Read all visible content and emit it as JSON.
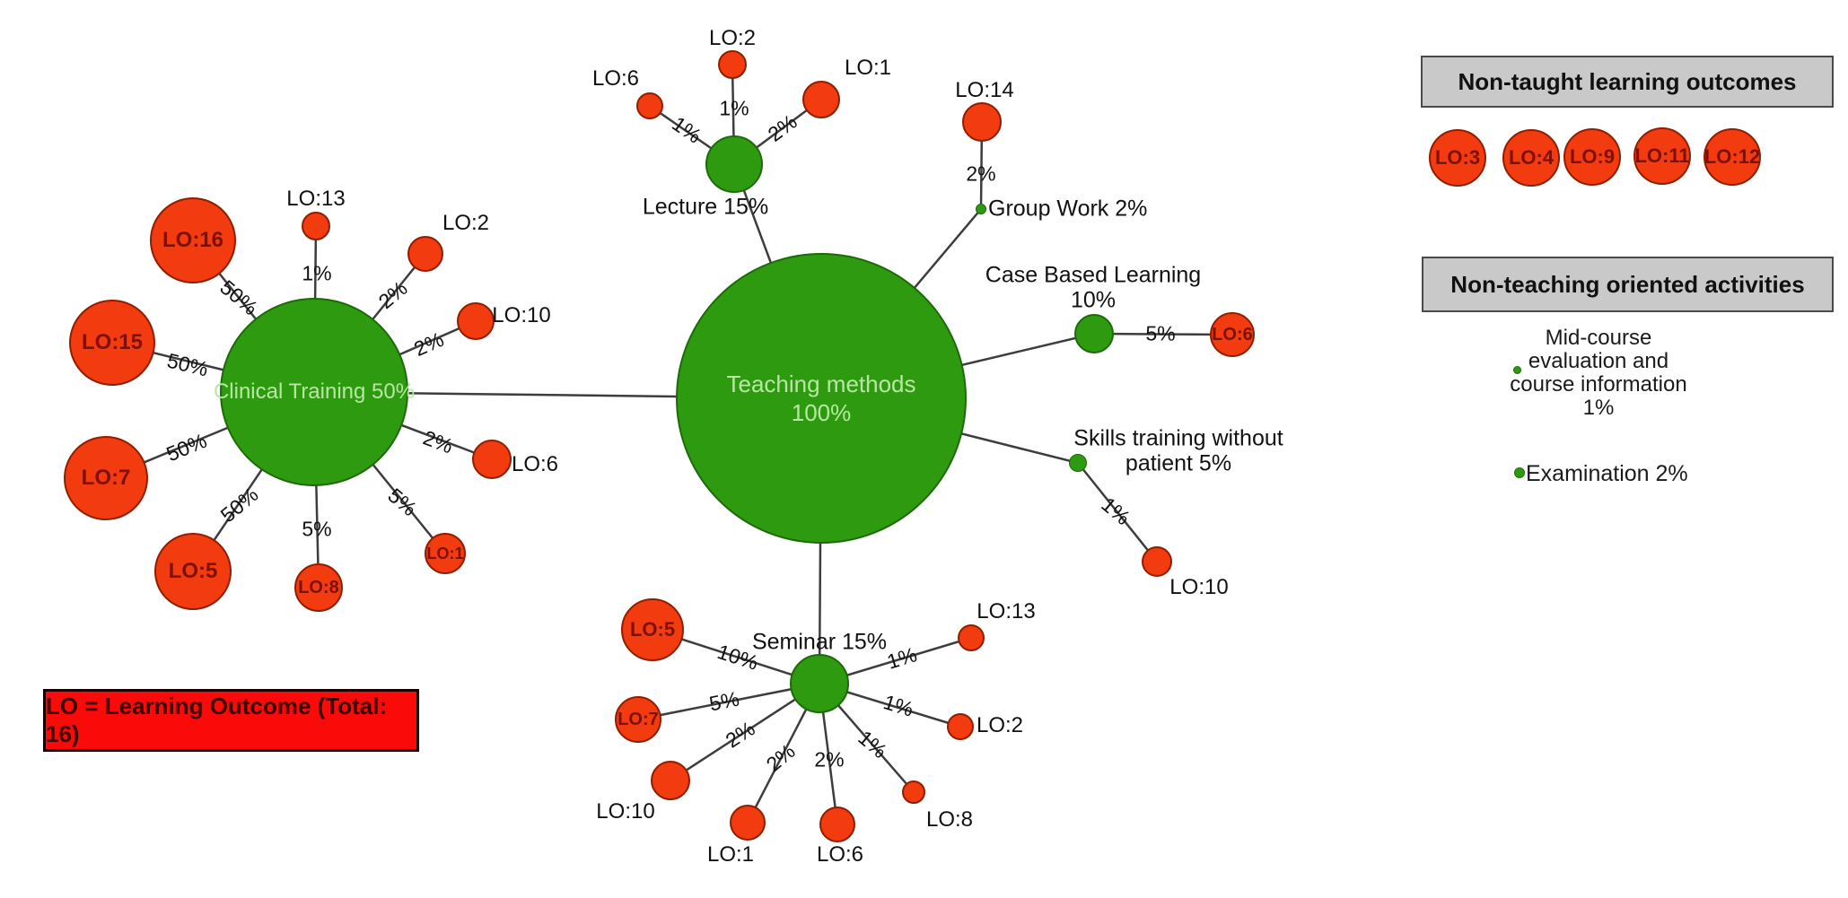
{
  "colors": {
    "hub_green": "#2e9a0f",
    "hub_border": "#1d6a08",
    "lo_red": "#f23b0e",
    "lo_border": "#8f1e00",
    "hub_text": "#b7e7a3",
    "lo_text": "#7d1000",
    "edge_line": "#3d3d3d",
    "legend_gray": "#c9c9c9",
    "note_red": "#fb0a0a"
  },
  "diagram": {
    "nodes": {
      "teaching": {
        "label": "Teaching methods",
        "label2": "100%",
        "kind": "hub"
      },
      "clinical": {
        "label": "Clinical Training 50%",
        "kind": "hub"
      },
      "lecture": {
        "label": "Lecture 15%",
        "kind": "hub"
      },
      "seminar": {
        "label": "Seminar 15%",
        "kind": "hub"
      },
      "casebased": {
        "label": "Case Based Learning",
        "label2": "10%",
        "kind": "hub"
      },
      "skills": {
        "label": "Skills training without",
        "label2": "patient 5%",
        "kind": "hub"
      },
      "groupwork": {
        "label": "Group Work 2%",
        "kind": "hub"
      },
      "lec_lo6": {
        "label": "LO:6",
        "kind": "lo"
      },
      "lec_lo2": {
        "label": "LO:2",
        "kind": "lo"
      },
      "lec_lo1": {
        "label": "LO:1",
        "kind": "lo"
      },
      "gw_lo14": {
        "label": "LO:14",
        "kind": "lo"
      },
      "cl_lo16": {
        "label": "LO:16",
        "kind": "lo"
      },
      "cl_lo13": {
        "label": "LO:13",
        "kind": "lo"
      },
      "cl_lo2": {
        "label": "LO:2",
        "kind": "lo"
      },
      "cl_lo10": {
        "label": "LO:10",
        "kind": "lo"
      },
      "cl_lo15": {
        "label": "LO:15",
        "kind": "lo"
      },
      "cl_lo6": {
        "label": "LO:6",
        "kind": "lo"
      },
      "cl_lo7": {
        "label": "LO:7",
        "kind": "lo"
      },
      "cl_lo1": {
        "label": "LO:1",
        "kind": "lo"
      },
      "cl_lo5": {
        "label": "LO:5",
        "kind": "lo"
      },
      "cl_lo8": {
        "label": "LO:8",
        "kind": "lo"
      },
      "sem_lo5": {
        "label": "LO:5",
        "kind": "lo"
      },
      "sem_lo7": {
        "label": "LO:7",
        "kind": "lo"
      },
      "sem_lo10": {
        "label": "LO:10",
        "kind": "lo"
      },
      "sem_lo1": {
        "label": "LO:1",
        "kind": "lo"
      },
      "sem_lo6": {
        "label": "LO:6",
        "kind": "lo"
      },
      "sem_lo8": {
        "label": "LO:8",
        "kind": "lo"
      },
      "sem_lo2": {
        "label": "LO:2",
        "kind": "lo"
      },
      "sem_lo13": {
        "label": "LO:13",
        "kind": "lo"
      },
      "cb_lo6": {
        "label": "LO:6",
        "kind": "lo"
      },
      "sk_lo10": {
        "label": "LO:10",
        "kind": "lo"
      },
      "nt_lo3": {
        "label": "LO:3",
        "kind": "lo"
      },
      "nt_lo4": {
        "label": "LO:4",
        "kind": "lo"
      },
      "nt_lo9": {
        "label": "LO:9",
        "kind": "lo"
      },
      "nt_lo11": {
        "label": "LO:11",
        "kind": "lo"
      },
      "nt_lo12": {
        "label": "LO:12",
        "kind": "lo"
      }
    },
    "edges": [
      {
        "from": "teaching",
        "to": "lecture",
        "label": ""
      },
      {
        "from": "lecture",
        "to": "lec_lo6",
        "label": "1%"
      },
      {
        "from": "lecture",
        "to": "lec_lo2",
        "label": "1%"
      },
      {
        "from": "lecture",
        "to": "lec_lo1",
        "label": "2%"
      },
      {
        "from": "teaching",
        "to": "groupwork",
        "label": ""
      },
      {
        "from": "groupwork",
        "to": "gw_lo14",
        "label": "2%"
      },
      {
        "from": "teaching",
        "to": "clinical",
        "label": ""
      },
      {
        "from": "clinical",
        "to": "cl_lo16",
        "label": "50%"
      },
      {
        "from": "clinical",
        "to": "cl_lo13",
        "label": "1%"
      },
      {
        "from": "clinical",
        "to": "cl_lo2",
        "label": "2%"
      },
      {
        "from": "clinical",
        "to": "cl_lo10",
        "label": "2%"
      },
      {
        "from": "clinical",
        "to": "cl_lo15",
        "label": "50%"
      },
      {
        "from": "clinical",
        "to": "cl_lo6",
        "label": "2%"
      },
      {
        "from": "clinical",
        "to": "cl_lo7",
        "label": "50%"
      },
      {
        "from": "clinical",
        "to": "cl_lo1",
        "label": "5%"
      },
      {
        "from": "clinical",
        "to": "cl_lo5",
        "label": "50%"
      },
      {
        "from": "clinical",
        "to": "cl_lo8",
        "label": "5%"
      },
      {
        "from": "teaching",
        "to": "seminar",
        "label": ""
      },
      {
        "from": "seminar",
        "to": "sem_lo5",
        "label": "10%"
      },
      {
        "from": "seminar",
        "to": "sem_lo7",
        "label": "5%"
      },
      {
        "from": "seminar",
        "to": "sem_lo10",
        "label": "2%"
      },
      {
        "from": "seminar",
        "to": "sem_lo1",
        "label": "2%"
      },
      {
        "from": "seminar",
        "to": "sem_lo6",
        "label": "2%"
      },
      {
        "from": "seminar",
        "to": "sem_lo8",
        "label": "1%"
      },
      {
        "from": "seminar",
        "to": "sem_lo2",
        "label": "1%"
      },
      {
        "from": "seminar",
        "to": "sem_lo13",
        "label": "1%"
      },
      {
        "from": "teaching",
        "to": "casebased",
        "label": ""
      },
      {
        "from": "casebased",
        "to": "cb_lo6",
        "label": "5%"
      },
      {
        "from": "teaching",
        "to": "skills",
        "label": ""
      },
      {
        "from": "skills",
        "to": "sk_lo10",
        "label": "1%"
      }
    ]
  },
  "legend": {
    "non_taught": {
      "title": "Non-taught learning outcomes"
    },
    "non_teaching": {
      "title": "Non-teaching oriented activities",
      "midcourse": {
        "lines": [
          "Mid-course",
          "evaluation and",
          "course information",
          "1%"
        ]
      },
      "examination": "Examination 2%"
    }
  },
  "note": {
    "text": "LO = Learning Outcome (Total: 16)"
  }
}
